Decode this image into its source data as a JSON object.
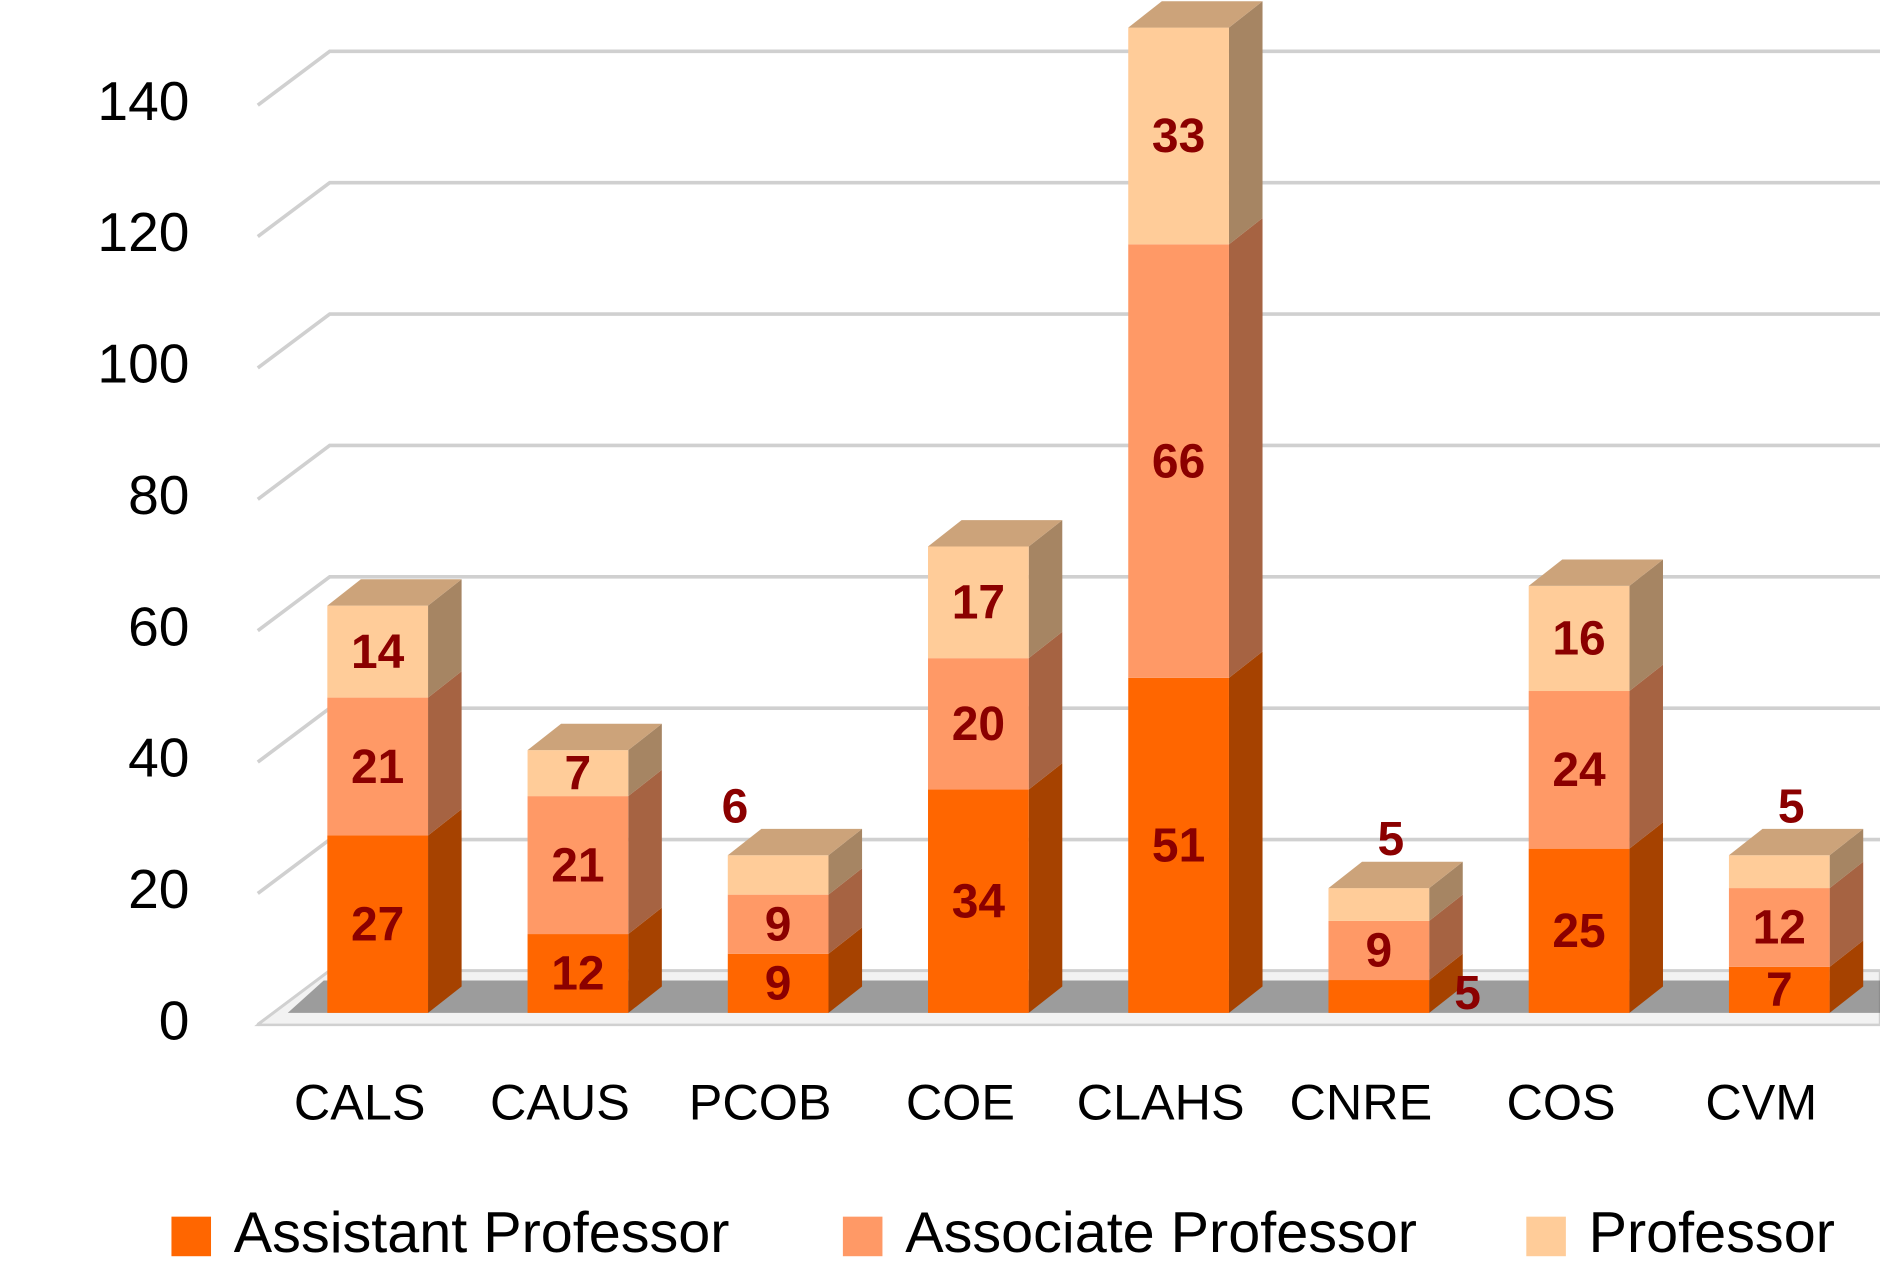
{
  "chart_data": {
    "type": "bar3d_stacked",
    "categories": [
      "CALS",
      "CAUS",
      "PCOB",
      "COE",
      "CLAHS",
      "CNRE",
      "COS",
      "CVM"
    ],
    "series": [
      {
        "name": "Assistant Professor",
        "color": "#ff6600",
        "values": [
          27,
          12,
          9,
          34,
          51,
          5,
          25,
          7
        ]
      },
      {
        "name": "Associate Professor",
        "color": "#ff9966",
        "values": [
          21,
          21,
          9,
          20,
          66,
          9,
          24,
          12
        ]
      },
      {
        "name": "Professor",
        "color": "#ffcc99",
        "values": [
          14,
          7,
          6,
          17,
          33,
          5,
          16,
          5
        ]
      }
    ],
    "ylim": [
      0,
      140
    ],
    "yticks": [
      0,
      20,
      40,
      60,
      80,
      100,
      120,
      140
    ],
    "grid": true,
    "legend": "bottom"
  }
}
